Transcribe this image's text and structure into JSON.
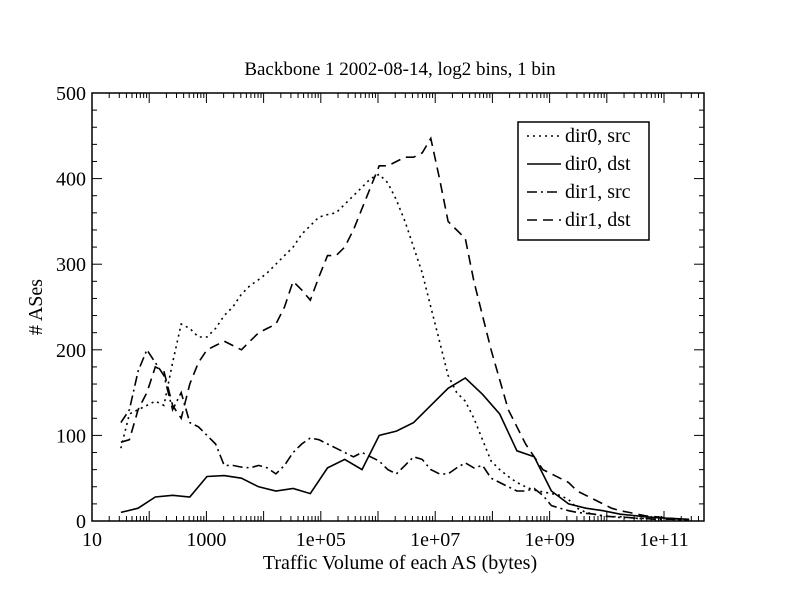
{
  "chart_data": {
    "type": "line",
    "title": "Backbone 1 2002-08-14,  log2 bins, 1 bin",
    "xlabel": "Traffic Volume of each AS (bytes)",
    "ylabel": "# ASes",
    "xscale": "log",
    "xlim": [
      10,
      500000000000
    ],
    "ylim": [
      0,
      500
    ],
    "xticks": [
      {
        "value": 10,
        "label": "10"
      },
      {
        "value": 1000,
        "label": "1000"
      },
      {
        "value": 100000,
        "label": "1e+05"
      },
      {
        "value": 10000000,
        "label": "1e+07"
      },
      {
        "value": 1000000000,
        "label": "1e+09"
      },
      {
        "value": 100000000000,
        "label": "1e+11"
      }
    ],
    "yticks": [
      {
        "value": 0,
        "label": "0"
      },
      {
        "value": 100,
        "label": "100"
      },
      {
        "value": 200,
        "label": "200"
      },
      {
        "value": 300,
        "label": "300"
      },
      {
        "value": 400,
        "label": "400"
      },
      {
        "value": 500,
        "label": "500"
      }
    ],
    "legend_position": "top-right",
    "series": [
      {
        "name": "dir0, src",
        "dash": "dotted",
        "x": [
          32,
          45,
          64,
          91,
          128,
          181,
          256,
          362,
          512,
          724,
          1024,
          1448,
          2048,
          2896,
          4096,
          5793,
          8192,
          11585,
          16384,
          23170,
          32768,
          46341,
          65536,
          92682,
          131072,
          185364,
          262144,
          370728,
          524288,
          741455,
          1048576,
          1482910,
          2097152,
          2965821,
          4194304,
          5931642,
          8388608,
          11863283,
          16777216,
          23726566,
          33554432,
          47453132,
          67108864,
          94906266,
          134217728,
          189812531,
          268435456,
          379625062,
          536870912,
          759250125,
          1073741824,
          1518500250,
          2147483648,
          3037000500,
          4294967296,
          6074001000,
          8589934592,
          12148002000,
          17179869184,
          24296004000,
          34359738368,
          48592008000,
          68719476736,
          97184016000,
          137438953472,
          194368032000,
          274877906944
        ],
        "y": [
          85,
          125,
          130,
          135,
          140,
          135,
          185,
          230,
          225,
          215,
          215,
          225,
          240,
          250,
          265,
          275,
          282,
          290,
          300,
          310,
          320,
          335,
          345,
          355,
          358,
          360,
          370,
          380,
          390,
          400,
          405,
          395,
          375,
          350,
          320,
          290,
          250,
          210,
          170,
          150,
          140,
          120,
          95,
          70,
          60,
          52,
          45,
          40,
          36,
          34,
          32,
          30,
          25,
          15,
          10,
          8,
          6,
          5,
          4,
          4,
          3,
          3,
          2,
          2,
          2,
          1,
          1
        ]
      },
      {
        "name": "dir0, dst",
        "dash": "solid",
        "x": [
          32,
          64,
          128,
          256,
          512,
          1024,
          2048,
          4096,
          8192,
          16384,
          32768,
          65536,
          131072,
          262144,
          524288,
          1048576,
          2097152,
          4194304,
          8388608,
          16777216,
          33554432,
          67108864,
          134217728,
          268435456,
          536870912,
          1073741824,
          2147483648,
          4294967296,
          8589934592,
          17179869184,
          34359738368,
          68719476736,
          137438953472,
          274877906944
        ],
        "y": [
          10,
          15,
          28,
          30,
          28,
          52,
          53,
          50,
          40,
          35,
          38,
          32,
          62,
          72,
          60,
          100,
          105,
          115,
          135,
          155,
          167,
          148,
          125,
          82,
          75,
          35,
          20,
          15,
          12,
          8,
          6,
          4,
          3,
          2
        ]
      },
      {
        "name": "dir1, src",
        "dash": "dashdot",
        "x": [
          32,
          45,
          64,
          91,
          128,
          181,
          256,
          362,
          512,
          724,
          1024,
          1448,
          2048,
          2896,
          4096,
          5793,
          8192,
          11585,
          16384,
          23170,
          32768,
          46341,
          65536,
          92682,
          131072,
          185364,
          262144,
          370728,
          524288,
          741455,
          1048576,
          1482910,
          2097152,
          2965821,
          4194304,
          5931642,
          8388608,
          11863283,
          16777216,
          23726566,
          33554432,
          47453132,
          67108864,
          94906266,
          134217728,
          189812531,
          268435456,
          379625062,
          536870912,
          759250125,
          1073741824,
          1518500250,
          2147483648,
          3037000500,
          4294967296,
          6074001000,
          8589934592,
          12148002000,
          17179869184,
          24296004000,
          34359738368,
          48592008000,
          68719476736,
          97184016000,
          137438953472,
          194368032000,
          274877906944
        ],
        "y": [
          115,
          130,
          175,
          200,
          185,
          170,
          130,
          150,
          115,
          110,
          100,
          90,
          65,
          65,
          63,
          62,
          65,
          62,
          55,
          65,
          80,
          90,
          97,
          95,
          90,
          85,
          80,
          75,
          80,
          75,
          70,
          60,
          55,
          65,
          75,
          72,
          60,
          55,
          55,
          62,
          68,
          62,
          65,
          50,
          45,
          40,
          35,
          35,
          38,
          30,
          18,
          15,
          12,
          10,
          9,
          8,
          6,
          5,
          5,
          4,
          3,
          3,
          2,
          2,
          2,
          1,
          1
        ]
      },
      {
        "name": "dir1, dst",
        "dash": "dashed",
        "x": [
          32,
          45,
          64,
          91,
          128,
          181,
          256,
          362,
          512,
          724,
          1024,
          1448,
          2048,
          2896,
          4096,
          5793,
          8192,
          11585,
          16384,
          23170,
          32768,
          46341,
          65536,
          92682,
          131072,
          185364,
          262144,
          370728,
          524288,
          741455,
          1048576,
          1482910,
          2097152,
          2965821,
          4194304,
          5931642,
          8388608,
          11863283,
          16777216,
          23726566,
          33554432,
          47453132,
          67108864,
          94906266,
          134217728,
          189812531,
          268435456,
          379625062,
          536870912,
          759250125,
          1073741824,
          1518500250,
          2147483648,
          3037000500,
          4294967296,
          6074001000,
          8589934592,
          12148002000,
          17179869184,
          24296004000,
          34359738368,
          48592008000,
          68719476736,
          97184016000,
          137438953472,
          194368032000,
          274877906944
        ],
        "y": [
          92,
          95,
          130,
          150,
          180,
          175,
          135,
          120,
          160,
          185,
          200,
          205,
          210,
          205,
          200,
          210,
          220,
          225,
          230,
          250,
          280,
          270,
          258,
          285,
          310,
          310,
          320,
          340,
          365,
          390,
          415,
          415,
          420,
          425,
          425,
          430,
          447,
          400,
          350,
          340,
          330,
          280,
          240,
          200,
          165,
          130,
          110,
          90,
          75,
          60,
          55,
          50,
          45,
          35,
          30,
          25,
          20,
          15,
          12,
          10,
          8,
          6,
          5,
          4,
          3,
          2,
          2
        ]
      }
    ]
  }
}
